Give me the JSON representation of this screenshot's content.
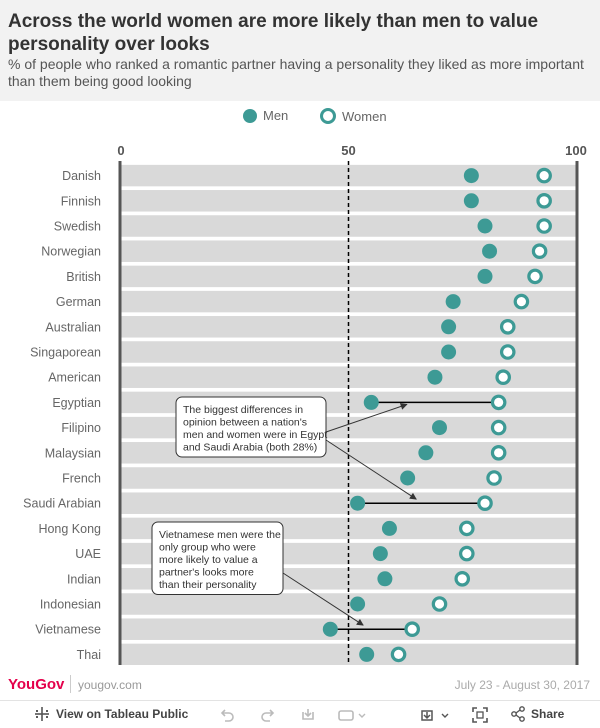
{
  "title": "Across the world women are more likely than men to value personality over looks",
  "subtitle": "% of people who ranked a romantic partner having a personality they liked as more important than them being good looking",
  "legend": {
    "men": "Men",
    "women": "Women"
  },
  "colors": {
    "accent": "#3d9a95",
    "band": "#d9d9d9",
    "axis": "#555555",
    "brand": "#e4004b"
  },
  "chart_data": {
    "type": "scatter",
    "title": "Across the world women are more likely than men to value personality over looks",
    "subtitle": "% of people who ranked a romantic partner having a personality they liked as more important than them being good looking",
    "xlim": [
      0,
      100
    ],
    "xticks": [
      "0",
      "50",
      "100"
    ],
    "xtick_values": [
      0,
      50,
      100
    ],
    "reference_line": 50,
    "legend_position": "top",
    "categories": [
      "Danish",
      "Finnish",
      "Swedish",
      "Norwegian",
      "British",
      "German",
      "Australian",
      "Singaporean",
      "American",
      "Egyptian",
      "Filipino",
      "Malaysian",
      "French",
      "Saudi Arabian",
      "Hong Kong",
      "UAE",
      "Indian",
      "Indonesian",
      "Vietnamese",
      "Thai"
    ],
    "series": [
      {
        "name": "Men",
        "values": [
          77,
          77,
          80,
          81,
          80,
          73,
          72,
          72,
          69,
          55,
          70,
          67,
          63,
          52,
          59,
          57,
          58,
          52,
          46,
          54
        ]
      },
      {
        "name": "Women",
        "values": [
          93,
          93,
          93,
          92,
          91,
          88,
          85,
          85,
          84,
          83,
          83,
          83,
          82,
          80,
          76,
          76,
          75,
          70,
          64,
          61
        ]
      }
    ],
    "highlights": [
      "Egyptian",
      "Saudi Arabian",
      "Vietnamese"
    ],
    "annotations": [
      "The biggest differences in opinion between a nation's men and women were in Egypt and Saudi Arabia (both 28%)",
      "Vietnamese men were the only group who were more likely to value a partner's looks more than their personality"
    ]
  },
  "footer": {
    "logo": "YouGov",
    "site": "yougov.com",
    "dates": "July 23 - August 30, 2017"
  },
  "toolbar": {
    "view_label": "View on Tableau Public",
    "share_label": "Share"
  }
}
